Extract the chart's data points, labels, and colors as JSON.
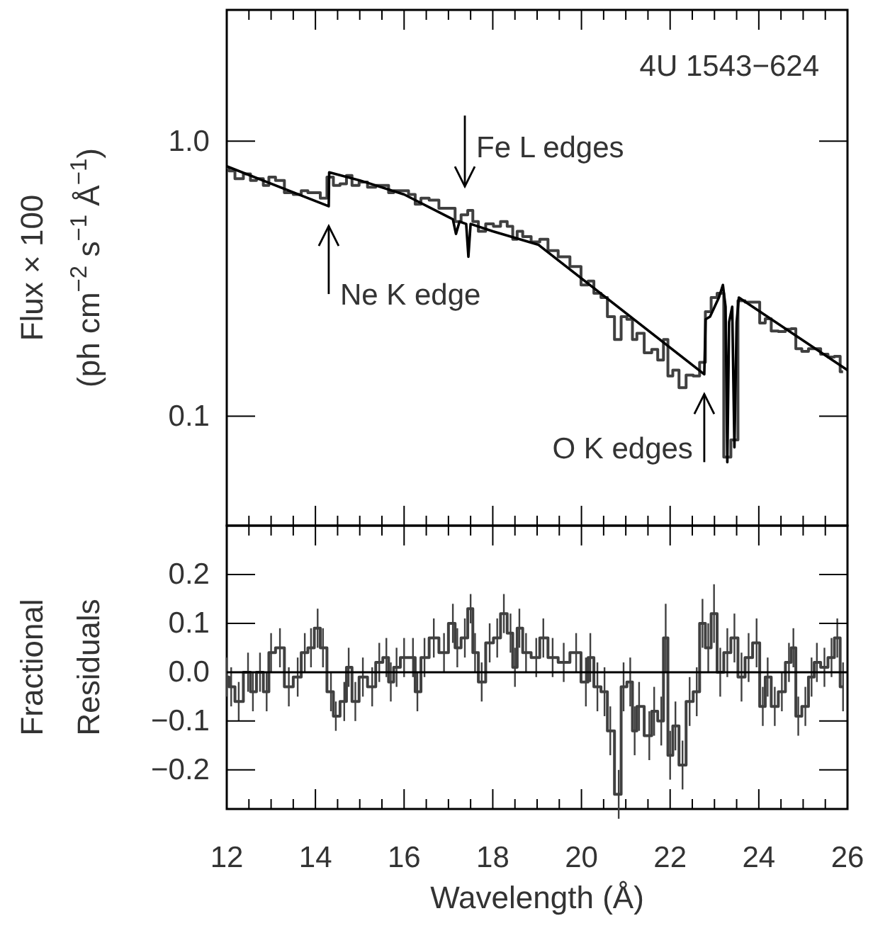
{
  "chart_data": [
    {
      "type": "line",
      "title": "4U 1543−624",
      "ylabel": "Flux × 100\n(ph cm$^{−2}$ s$^{−1}$ Å$^{−1}$)",
      "log": "y",
      "tick_labels": "y",
      "xlim": [
        12,
        26
      ],
      "xticks": [
        {
          "value": 12,
          "label": null
        },
        {
          "value": 12.5,
          "label": null
        },
        {
          "value": 13,
          "label": null
        },
        {
          "value": 13.5,
          "label": null
        },
        {
          "value": 14,
          "label": null
        },
        {
          "value": 14.5,
          "label": null
        },
        {
          "value": 15,
          "label": null
        },
        {
          "value": 15.5,
          "label": null
        },
        {
          "value": 16,
          "label": null
        },
        {
          "value": 16.5,
          "label": null
        },
        {
          "value": 17,
          "label": null
        },
        {
          "value": 17.5,
          "label": null
        },
        {
          "value": 18,
          "label": null
        },
        {
          "value": 18.5,
          "label": null
        },
        {
          "value": 19,
          "label": null
        },
        {
          "value": 19.5,
          "label": null
        },
        {
          "value": 20,
          "label": null
        },
        {
          "value": 20.5,
          "label": null
        },
        {
          "value": 21,
          "label": null
        },
        {
          "value": 21.5,
          "label": null
        },
        {
          "value": 22,
          "label": null
        },
        {
          "value": 22.5,
          "label": null
        },
        {
          "value": 23,
          "label": null
        },
        {
          "value": 23.5,
          "label": null
        },
        {
          "value": 24,
          "label": null
        },
        {
          "value": 24.5,
          "label": null
        },
        {
          "value": 25,
          "label": null
        },
        {
          "value": 25.5,
          "label": null
        },
        {
          "value": 26,
          "label": null
        }
      ],
      "ylim": [
        0.04,
        3
      ],
      "yticks": [
        {
          "value": 0.1,
          "label": "0.1"
        },
        {
          "value": 1,
          "label": "1.0"
        }
      ],
      "series": [
        {
          "type": "step",
          "color": "#404040",
          "x": [
            12.0,
            12.1,
            12.27,
            12.48,
            12.59,
            12.75,
            12.9,
            13.0,
            13.2,
            13.4,
            13.6,
            13.76,
            13.9,
            14.05,
            14.17,
            14.35,
            14.46,
            14.65,
            14.75,
            14.9,
            15.07,
            15.28,
            15.44,
            15.6,
            15.7,
            15.83,
            16.0,
            16.2,
            16.3,
            16.46,
            16.67,
            16.9,
            17.1,
            17.2,
            17.37,
            17.5,
            17.6,
            17.75,
            17.93,
            18.1,
            18.25,
            18.4,
            18.5,
            18.6,
            18.75,
            18.98,
            19.14,
            19.35,
            19.6,
            19.88,
            20.1,
            20.2,
            20.36,
            20.52,
            20.65,
            20.84,
            20.95,
            21.1,
            21.2,
            21.3,
            21.53,
            21.64,
            21.8,
            21.9,
            22.0,
            22.12,
            22.28,
            22.44,
            22.6,
            22.73,
            22.86,
            22.99,
            23.13,
            23.29,
            23.45,
            23.61,
            23.77,
            23.95,
            24.09,
            24.2,
            24.36,
            24.52,
            24.68,
            24.78,
            24.89,
            25.05,
            25.19,
            25.31,
            25.48,
            25.64,
            25.77,
            25.9
          ],
          "values": [
            0.8,
            0.78,
            0.73,
            0.76,
            0.72,
            0.73,
            0.69,
            0.74,
            0.72,
            0.65,
            0.64,
            0.66,
            0.65,
            0.65,
            0.62,
            0.74,
            0.69,
            0.7,
            0.75,
            0.69,
            0.71,
            0.68,
            0.69,
            0.69,
            0.65,
            0.66,
            0.66,
            0.64,
            0.59,
            0.62,
            0.61,
            0.57,
            0.57,
            0.51,
            0.54,
            0.56,
            0.51,
            0.47,
            0.5,
            0.49,
            0.51,
            0.49,
            0.44,
            0.47,
            0.45,
            0.43,
            0.44,
            0.4,
            0.38,
            0.35,
            0.3,
            0.31,
            0.28,
            0.27,
            0.23,
            0.19,
            0.23,
            0.225,
            0.19,
            0.2,
            0.17,
            0.175,
            0.16,
            0.19,
            0.14,
            0.147,
            0.127,
            0.141,
            0.14,
            0.157,
            0.24,
            0.27,
            0.28,
            0.071,
            0.082,
            0.263,
            0.26,
            0.26,
            0.218,
            0.226,
            0.204,
            0.203,
            0.207,
            0.208,
            0.176,
            0.172,
            0.176,
            0.176,
            0.168,
            0.164,
            0.165,
            0.145
          ]
        },
        {
          "type": "line",
          "color": "#000000",
          "x": [
            12,
            14.3,
            14.31,
            15,
            16,
            17.0,
            17.1,
            17.17,
            17.25,
            17.4,
            17.45,
            17.5,
            18,
            19.03,
            22.77,
            22.8,
            22.9,
            23.1,
            23.19,
            23.25,
            23.29,
            23.33,
            23.4,
            23.45,
            23.5,
            23.55,
            26
          ],
          "values": [
            0.81,
            0.58,
            0.77,
            0.72,
            0.64,
            0.53,
            0.52,
            0.46,
            0.51,
            0.5,
            0.38,
            0.5,
            0.47,
            0.42,
            0.142,
            0.225,
            0.23,
            0.27,
            0.3,
            0.25,
            0.068,
            0.22,
            0.25,
            0.077,
            0.22,
            0.27,
            0.147
          ]
        }
      ],
      "annotations": [
        {
          "text": "Ne K edge",
          "x": 14.3,
          "y": 0.58
        },
        {
          "text": "Fe L edges",
          "x": 17.37,
          "y": 0.54
        },
        {
          "text": "O K edges",
          "x": 22.77,
          "y": 0.142
        }
      ]
    },
    {
      "type": "line",
      "ylabel": "Fractional\nResiduals",
      "xlabel": "Wavelength (Å)",
      "xlim": [
        12,
        26
      ],
      "xticks": [
        {
          "value": 12,
          "label": "12"
        },
        {
          "value": 12.5,
          "label": null
        },
        {
          "value": 13,
          "label": null
        },
        {
          "value": 13.5,
          "label": null
        },
        {
          "value": 14,
          "label": "14"
        },
        {
          "value": 14.5,
          "label": null
        },
        {
          "value": 15,
          "label": null
        },
        {
          "value": 15.5,
          "label": null
        },
        {
          "value": 16,
          "label": "16"
        },
        {
          "value": 16.5,
          "label": null
        },
        {
          "value": 17,
          "label": null
        },
        {
          "value": 17.5,
          "label": null
        },
        {
          "value": 18,
          "label": "18"
        },
        {
          "value": 18.5,
          "label": null
        },
        {
          "value": 19,
          "label": null
        },
        {
          "value": 19.5,
          "label": null
        },
        {
          "value": 20,
          "label": "20"
        },
        {
          "value": 20.5,
          "label": null
        },
        {
          "value": 21,
          "label": null
        },
        {
          "value": 21.5,
          "label": null
        },
        {
          "value": 22,
          "label": "22"
        },
        {
          "value": 22.5,
          "label": null
        },
        {
          "value": 23,
          "label": null
        },
        {
          "value": 23.5,
          "label": null
        },
        {
          "value": 24,
          "label": "24"
        },
        {
          "value": 24.5,
          "label": null
        },
        {
          "value": 25,
          "label": null
        },
        {
          "value": 25.5,
          "label": null
        },
        {
          "value": 26,
          "label": "26"
        }
      ],
      "ylim": [
        -0.28,
        0.3
      ],
      "yticks": [
        {
          "value": -0.2,
          "label": "−0.2"
        },
        {
          "value": -0.1,
          "label": "−0.1"
        },
        {
          "value": 0,
          "label": "0.0"
        },
        {
          "value": 0.1,
          "label": "0.1"
        },
        {
          "value": 0.2,
          "label": "0.2"
        }
      ],
      "ref_lines": [
        {
          "axis": "y",
          "value": 0,
          "color": "#000000"
        }
      ],
      "series": [
        {
          "type": "step",
          "color": "#404040",
          "x": [
            12.0,
            12.1,
            12.27,
            12.48,
            12.59,
            12.75,
            12.9,
            13.0,
            13.2,
            13.4,
            13.6,
            13.76,
            13.9,
            14.05,
            14.17,
            14.35,
            14.46,
            14.65,
            14.75,
            14.9,
            15.07,
            15.28,
            15.44,
            15.6,
            15.7,
            15.83,
            16.0,
            16.2,
            16.3,
            16.46,
            16.67,
            16.9,
            17.1,
            17.2,
            17.37,
            17.5,
            17.6,
            17.75,
            17.93,
            18.1,
            18.25,
            18.4,
            18.5,
            18.6,
            18.75,
            18.98,
            19.14,
            19.35,
            19.6,
            19.88,
            20.1,
            20.2,
            20.36,
            20.52,
            20.65,
            20.84,
            20.95,
            21.1,
            21.2,
            21.3,
            21.53,
            21.64,
            21.8,
            21.9,
            22.0,
            22.12,
            22.28,
            22.44,
            22.6,
            22.73,
            22.86,
            22.99,
            23.13,
            23.29,
            23.45,
            23.61,
            23.77,
            23.95,
            24.09,
            24.2,
            24.36,
            24.52,
            24.68,
            24.78,
            24.89,
            25.05,
            25.19,
            25.31,
            25.48,
            25.64,
            25.77,
            25.9
          ],
          "values": [
            -0.01,
            -0.03,
            -0.06,
            0.0,
            -0.04,
            0.0,
            -0.04,
            0.04,
            0.05,
            -0.03,
            -0.01,
            0.04,
            0.05,
            0.09,
            0.05,
            -0.04,
            -0.09,
            -0.06,
            0.01,
            -0.06,
            -0.01,
            -0.03,
            0.02,
            0.03,
            -0.02,
            0.01,
            0.03,
            0.03,
            -0.04,
            0.03,
            0.07,
            0.04,
            0.1,
            0.05,
            0.07,
            0.13,
            0.04,
            -0.02,
            0.06,
            0.07,
            0.12,
            0.08,
            0.01,
            0.09,
            0.04,
            0.03,
            0.07,
            0.03,
            0.02,
            0.04,
            -0.02,
            0.03,
            -0.03,
            -0.04,
            -0.12,
            -0.25,
            -0.03,
            -0.02,
            -0.12,
            -0.07,
            -0.13,
            -0.08,
            -0.1,
            0.07,
            -0.17,
            -0.11,
            -0.19,
            -0.06,
            -0.04,
            0.1,
            0.05,
            0.12,
            0.0,
            0.04,
            0.07,
            -0.01,
            0.03,
            0.06,
            -0.07,
            -0.01,
            -0.07,
            -0.04,
            0.02,
            0.05,
            -0.09,
            -0.07,
            -0.01,
            0.02,
            0.01,
            0.03,
            0.07,
            -0.03
          ],
          "errors": [
            0.04,
            0.04,
            0.04,
            0.04,
            0.04,
            0.04,
            0.04,
            0.04,
            0.04,
            0.04,
            0.04,
            0.04,
            0.04,
            0.04,
            0.04,
            0.04,
            0.03,
            0.04,
            0.04,
            0.04,
            0.04,
            0.04,
            0.04,
            0.04,
            0.04,
            0.04,
            0.04,
            0.04,
            0.04,
            0.04,
            0.04,
            0.04,
            0.04,
            0.04,
            0.04,
            0.03,
            0.04,
            0.04,
            0.04,
            0.04,
            0.04,
            0.04,
            0.04,
            0.04,
            0.04,
            0.04,
            0.04,
            0.04,
            0.04,
            0.04,
            0.05,
            0.05,
            0.05,
            0.05,
            0.05,
            0.05,
            0.05,
            0.05,
            0.05,
            0.05,
            0.05,
            0.05,
            0.05,
            0.07,
            0.05,
            0.05,
            0.05,
            0.05,
            0.05,
            0.05,
            0.05,
            0.06,
            0.05,
            0.05,
            0.05,
            0.05,
            0.05,
            0.05,
            0.04,
            0.04,
            0.04,
            0.04,
            0.04,
            0.04,
            0.04,
            0.04,
            0.04,
            0.04,
            0.04,
            0.04,
            0.04,
            0.05
          ]
        }
      ]
    }
  ]
}
